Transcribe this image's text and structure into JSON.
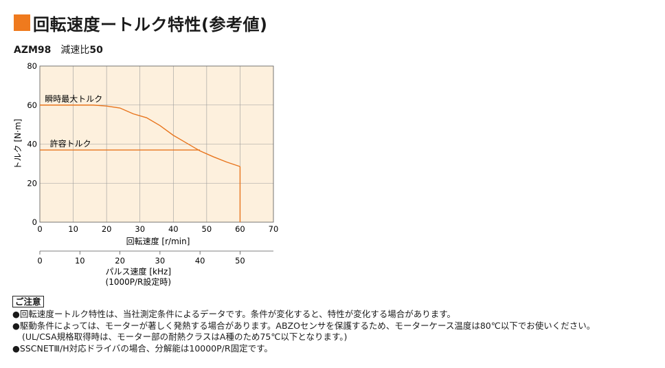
{
  "title": "回転速度ートルク特性(参考値)",
  "model": {
    "name": "AZM98",
    "ratio_label": "減速比",
    "ratio_value": "50"
  },
  "colors": {
    "accent": "#ef7a1e",
    "plot_background": "#fdf0dd",
    "curve": "#e8741c"
  },
  "chart_data": {
    "type": "line",
    "xlabel": "回転速度 [r/min]",
    "ylabel": "トルク [N·m]",
    "xlim": [
      0,
      70
    ],
    "ylim": [
      0,
      80
    ],
    "xticks": [
      0,
      10,
      20,
      30,
      40,
      50,
      60,
      70
    ],
    "yticks": [
      0,
      20,
      40,
      60,
      80
    ],
    "grid": true,
    "series": [
      {
        "name": "瞬時最大トルク",
        "x": [
          0,
          16,
          20,
          24,
          28,
          32,
          36,
          40,
          44,
          48,
          52,
          56,
          60
        ],
        "y": [
          60,
          60,
          59.5,
          58.5,
          55.5,
          53.5,
          49.5,
          44.5,
          40.5,
          36.5,
          33.5,
          30.8,
          28.5
        ]
      },
      {
        "name": "許容トルク",
        "x": [
          0,
          48
        ],
        "y": [
          37,
          37
        ]
      }
    ],
    "cutoff": {
      "x": 60,
      "y_from": 28.5,
      "y_to": 0
    },
    "secondary_axis": {
      "label": "パルス速度 [kHz]",
      "sublabel": "(1000P/R設定時)",
      "ticks": [
        0,
        10,
        20,
        30,
        40,
        50
      ],
      "kHz_to_rpm": 1.2
    }
  },
  "notes": {
    "heading": "ご注意",
    "items": [
      "●回転速度ートルク特性は、当社測定条件によるデータです。条件が変化すると、特性が変化する場合があります。",
      "●駆動条件によっては、モーターが著しく発熱する場合があります。ABZOセンサを保護するため、モーターケース温度は80℃以下でお使いください。",
      "(UL/CSA規格取得時は、モーター部の耐熱クラスはA種のため75℃以下となります。)",
      "●SSCNETⅢ/H対応ドライバの場合、分解能は10000P/R固定です。"
    ]
  }
}
